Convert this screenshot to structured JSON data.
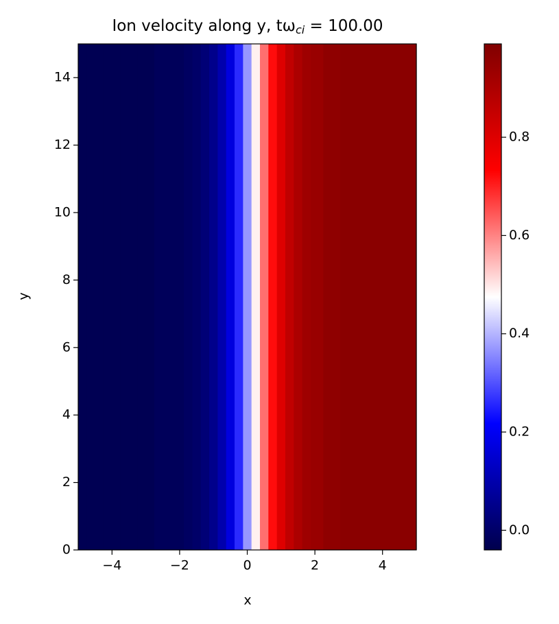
{
  "chart_data": {
    "type": "heatmap",
    "title": [
      {
        "text": "Ion velocity along y, tω"
      },
      {
        "text": "ci",
        "sub": true
      },
      {
        "text": " = 100.00"
      }
    ],
    "x_label": "x",
    "y_label": "y",
    "x": [
      -5,
      -4.5,
      -4,
      -3.5,
      -3,
      -2.5,
      -2,
      -1.75,
      -1.5,
      -1.25,
      -1,
      -0.75,
      -0.5,
      -0.25,
      0,
      0.25,
      0.5,
      0.75,
      1,
      1.25,
      1.5,
      1.75,
      2,
      2.5,
      3,
      3.5,
      4,
      4.5,
      5
    ],
    "values": [
      -0.03,
      -0.03,
      -0.03,
      -0.03,
      -0.03,
      -0.02,
      -0.02,
      -0.01,
      0.0,
      0.02,
      0.05,
      0.1,
      0.17,
      0.26,
      0.37,
      0.49,
      0.62,
      0.72,
      0.8,
      0.86,
      0.9,
      0.93,
      0.94,
      0.96,
      0.97,
      0.97,
      0.97,
      0.97,
      0.97
    ],
    "xlim": [
      -5,
      5
    ],
    "ylim": [
      0,
      15
    ],
    "xticks": [
      {
        "value": -4,
        "label": "−4"
      },
      {
        "value": -2,
        "label": "−2"
      },
      0,
      2,
      4
    ],
    "yticks": [
      0,
      2,
      4,
      6,
      8,
      10,
      12,
      14
    ],
    "clim": [
      -0.04,
      0.99
    ],
    "cticks": [
      {
        "value": 0,
        "label": "0.0"
      },
      0.2,
      0.4,
      0.6,
      0.8
    ],
    "colormap": [
      "#00004c",
      "#0000ff",
      "#ffffff",
      "#ff0000",
      "#800000"
    ]
  }
}
